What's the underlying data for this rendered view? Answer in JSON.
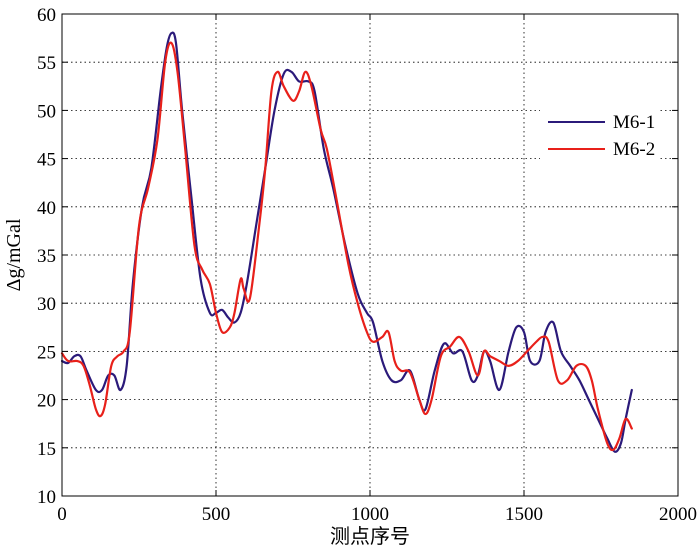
{
  "chart_data": {
    "type": "line",
    "title": "",
    "xlabel": "测点序号",
    "ylabel": "Δg/mGal",
    "xlim": [
      0,
      2000
    ],
    "ylim": [
      10,
      60
    ],
    "xticks": [
      "0",
      "500",
      "1000",
      "1500",
      "2000"
    ],
    "yticks": [
      "10",
      "15",
      "20",
      "25",
      "30",
      "35",
      "40",
      "45",
      "50",
      "55",
      "60"
    ],
    "grid": true,
    "legend_position": "right",
    "series": [
      {
        "name": "M6-1",
        "color": "#2b1a7a",
        "x": [
          0,
          20,
          40,
          60,
          80,
          110,
          130,
          150,
          170,
          190,
          210,
          230,
          260,
          290,
          320,
          340,
          355,
          370,
          390,
          420,
          450,
          480,
          500,
          520,
          540,
          560,
          580,
          600,
          630,
          660,
          690,
          720,
          745,
          770,
          800,
          820,
          850,
          880,
          920,
          960,
          990,
          1010,
          1040,
          1070,
          1100,
          1130,
          1160,
          1180,
          1210,
          1240,
          1270,
          1300,
          1330,
          1350,
          1370,
          1390,
          1420,
          1450,
          1475,
          1500,
          1520,
          1550,
          1570,
          1595,
          1620,
          1650,
          1680,
          1710,
          1740,
          1770,
          1795,
          1815,
          1830,
          1850
        ],
        "y": [
          24,
          23.8,
          24.5,
          24.5,
          23,
          21,
          21,
          22.5,
          22.5,
          21,
          23.5,
          32,
          40,
          44,
          52,
          56.5,
          58,
          57,
          50,
          41,
          32.5,
          29,
          29,
          29.3,
          28.5,
          28,
          29,
          32,
          38,
          44,
          50,
          53.8,
          54,
          53,
          53,
          52,
          46,
          42,
          36,
          31,
          29,
          28,
          24,
          22,
          22,
          23,
          20,
          19,
          23,
          25.8,
          24.8,
          25,
          22,
          22.5,
          25,
          24,
          21,
          25,
          27.5,
          27,
          24,
          24,
          27,
          28,
          25,
          23.5,
          22,
          20,
          18,
          16,
          14.6,
          15.5,
          18,
          21
        ]
      },
      {
        "name": "M6-2",
        "color": "#e8201a",
        "x": [
          0,
          20,
          50,
          70,
          90,
          110,
          125,
          140,
          160,
          180,
          200,
          220,
          250,
          280,
          310,
          335,
          355,
          375,
          400,
          430,
          455,
          480,
          500,
          520,
          545,
          560,
          580,
          590,
          610,
          640,
          660,
          680,
          700,
          720,
          750,
          770,
          790,
          810,
          840,
          860,
          890,
          930,
          960,
          990,
          1010,
          1040,
          1060,
          1080,
          1100,
          1130,
          1160,
          1180,
          1200,
          1230,
          1260,
          1290,
          1320,
          1350,
          1370,
          1390,
          1420,
          1450,
          1480,
          1510,
          1540,
          1560,
          1580,
          1610,
          1640,
          1670,
          1700,
          1720,
          1740,
          1770,
          1790,
          1810,
          1830,
          1850
        ],
        "y": [
          24.8,
          24,
          24,
          23.5,
          21.5,
          19,
          18.3,
          19.5,
          23.5,
          24.5,
          25,
          27,
          38,
          42,
          47,
          55,
          57,
          54,
          46,
          36,
          33.5,
          32,
          29,
          27,
          27.5,
          29,
          32.5,
          31.5,
          30.5,
          38,
          44,
          52,
          54,
          52.5,
          51,
          52,
          54,
          52.5,
          48,
          46,
          41,
          34,
          30,
          27,
          26,
          26.5,
          27,
          24,
          23,
          22.8,
          20,
          18.5,
          20,
          24.5,
          25.5,
          26.5,
          25,
          22.5,
          25,
          24.5,
          24,
          23.5,
          24,
          25,
          26,
          26.5,
          26,
          22,
          22,
          23.5,
          23.5,
          22,
          19,
          15.5,
          14.8,
          16,
          18,
          17
        ]
      }
    ]
  }
}
